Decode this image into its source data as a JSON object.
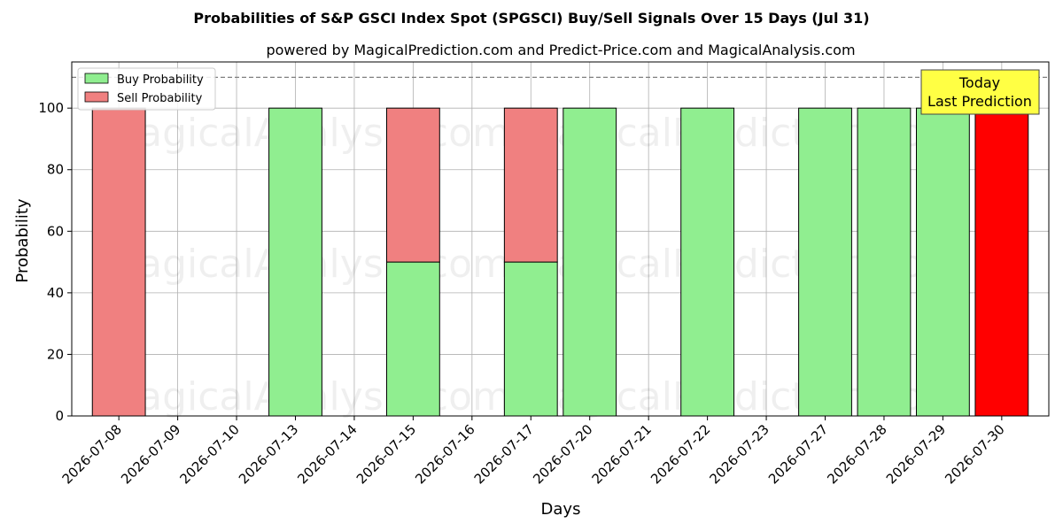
{
  "title": "Probabilities of S&P GSCI Index Spot (SPGSCI) Buy/Sell Signals Over 15 Days (Jul 31)",
  "subtitle": "powered by MagicalPrediction.com and Predict-Price.com and MagicalAnalysis.com",
  "watermarks": [
    "MagicalAnalysis.com",
    "MagicalPrediction.com"
  ],
  "today_box": {
    "line1": "Today",
    "line2": "Last Prediction"
  },
  "colors": {
    "buy": "#90ee90",
    "sell": "#f08080",
    "today": "#ff0000",
    "today_box_bg": "#ffff44"
  },
  "chart_data": {
    "type": "bar",
    "stacked": true,
    "xlabel": "Days",
    "ylabel": "Probability",
    "ylim": [
      0,
      115
    ],
    "yticks": [
      0,
      20,
      40,
      60,
      80,
      100
    ],
    "reference_line": 110,
    "grid": true,
    "legend_position": "top-left",
    "categories": [
      "2026-07-08",
      "2026-07-09",
      "2026-07-10",
      "2026-07-13",
      "2026-07-14",
      "2026-07-15",
      "2026-07-16",
      "2026-07-17",
      "2026-07-20",
      "2026-07-21",
      "2026-07-22",
      "2026-07-23",
      "2026-07-27",
      "2026-07-28",
      "2026-07-29",
      "2026-07-30"
    ],
    "series": [
      {
        "name": "Buy Probability",
        "values": [
          0,
          0,
          0,
          100,
          0,
          50,
          0,
          50,
          100,
          0,
          100,
          0,
          100,
          100,
          100,
          0
        ]
      },
      {
        "name": "Sell Probability",
        "values": [
          100,
          0,
          0,
          0,
          0,
          50,
          0,
          50,
          0,
          0,
          0,
          0,
          0,
          0,
          0,
          100
        ]
      }
    ],
    "today_index": 15
  }
}
